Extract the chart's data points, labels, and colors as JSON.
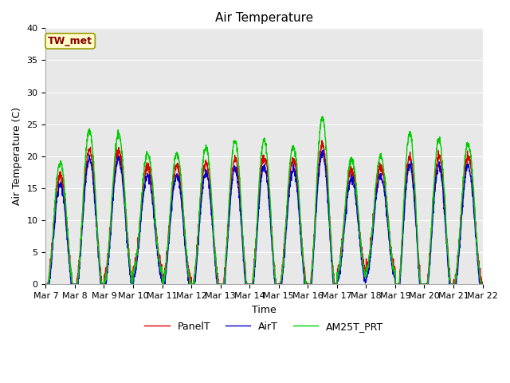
{
  "title": "Air Temperature",
  "xlabel": "Time",
  "ylabel": "Air Temperature (C)",
  "ylim": [
    0,
    40
  ],
  "n_days": 15,
  "x_tick_labels": [
    "Mar 7",
    "Mar 8",
    "Mar 9",
    "Mar 10",
    "Mar 11",
    "Mar 12",
    "Mar 13",
    "Mar 14",
    "Mar 15",
    "Mar 16",
    "Mar 17",
    "Mar 18",
    "Mar 19",
    "Mar 20",
    "Mar 21",
    "Mar 22"
  ],
  "station_label": "TW_met",
  "station_label_color": "#8b0000",
  "station_box_facecolor": "#ffffcc",
  "station_box_edgecolor": "#999900",
  "legend_labels": [
    "PanelT",
    "AirT",
    "AM25T_PRT"
  ],
  "line_colors": [
    "#dd0000",
    "#0000cc",
    "#00cc00"
  ],
  "plot_bg_color": "#e8e8e8",
  "grid_color": "#ffffff",
  "title_fontsize": 11,
  "axis_label_fontsize": 9,
  "tick_fontsize": 8,
  "line_width": 1.0,
  "day_bases": [
    8.0,
    10.0,
    11.0,
    10.5,
    9.5,
    9.0,
    8.5,
    9.0,
    9.5,
    10.0,
    10.0,
    10.5,
    8.0,
    9.0,
    10.0
  ],
  "day_amplitudes": [
    9.0,
    11.0,
    10.0,
    8.0,
    9.0,
    10.0,
    11.0,
    11.0,
    10.0,
    12.0,
    8.0,
    8.0,
    12.0,
    11.0,
    10.0
  ],
  "green_boost": [
    2.0,
    3.0,
    2.5,
    2.0,
    2.0,
    2.5,
    3.0,
    2.5,
    2.0,
    4.0,
    1.5,
    1.5,
    3.5,
    2.5,
    2.0
  ]
}
